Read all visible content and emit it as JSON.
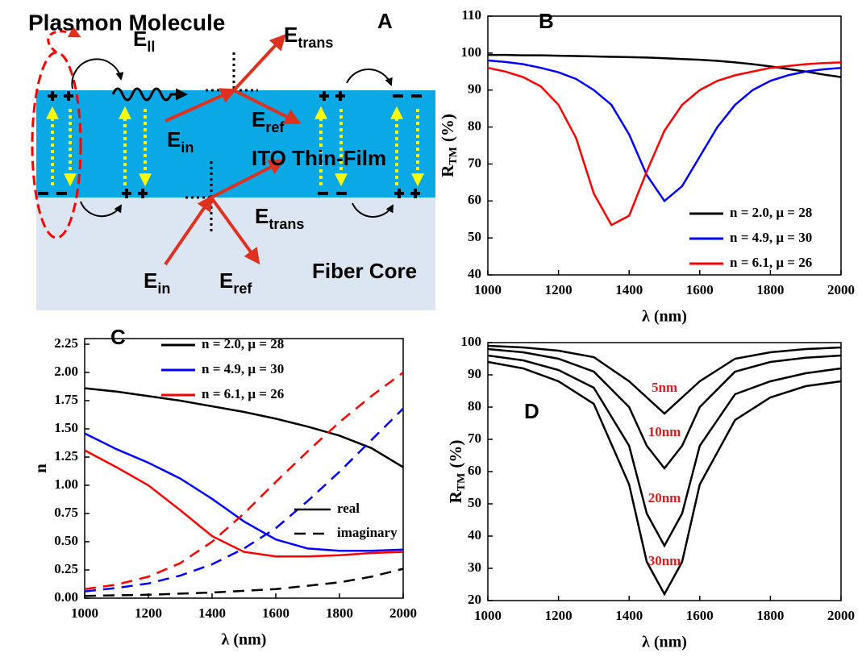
{
  "diagram": {
    "panel_label": "A",
    "title": "Plasmon Molecule",
    "film_label": "ITO Thin-Film",
    "core_label": "Fiber Core",
    "fields": [
      {
        "symbol": "E",
        "sub": "ll"
      },
      {
        "symbol": "E",
        "sub": "trans"
      },
      {
        "symbol": "E",
        "sub": "ref"
      },
      {
        "symbol": "E",
        "sub": "in"
      },
      {
        "symbol": "E",
        "sub": "trans"
      },
      {
        "symbol": "E",
        "sub": "in"
      },
      {
        "symbol": "E",
        "sub": "ref"
      }
    ]
  },
  "chart_data": [
    {
      "type": "line",
      "panel_label": "B",
      "xlabel": "λ (nm)",
      "ylabel": "R",
      "ylabel_sub": "TM",
      "ylabel_unit": "(%)",
      "x": [
        1000,
        1050,
        1100,
        1150,
        1200,
        1250,
        1300,
        1350,
        1400,
        1450,
        1500,
        1550,
        1600,
        1650,
        1700,
        1750,
        1800,
        1850,
        1900,
        1950,
        2000
      ],
      "xlim": [
        1000,
        2000
      ],
      "xticks": [
        1000,
        1200,
        1400,
        1600,
        1800,
        2000
      ],
      "ylim": [
        40,
        110
      ],
      "yticks": [
        40,
        50,
        60,
        70,
        80,
        90,
        100,
        110
      ],
      "legend": "lower right",
      "series": [
        {
          "name": "n = 2.0, μ = 28",
          "color": "#000000",
          "values": [
            99.5,
            99.5,
            99.4,
            99.4,
            99.3,
            99.2,
            99.1,
            99,
            98.9,
            98.8,
            98.6,
            98.4,
            98.2,
            97.9,
            97.5,
            97,
            96.4,
            95.7,
            95,
            94.2,
            93.5
          ]
        },
        {
          "name": "n = 4.9, μ = 30",
          "color": "#0000ff",
          "values": [
            98,
            97.6,
            97,
            96,
            94.8,
            93,
            90,
            86,
            78,
            67,
            60,
            64,
            72,
            80,
            86,
            90,
            92.5,
            94,
            95,
            95.6,
            96
          ]
        },
        {
          "name": "n = 6.1, μ = 26",
          "color": "#ff0000",
          "values": [
            96,
            95,
            93.5,
            91,
            86,
            77,
            62,
            53.5,
            56,
            68,
            79,
            86,
            90,
            92.5,
            94,
            95,
            96,
            96.5,
            97,
            97.3,
            97.5
          ]
        }
      ]
    },
    {
      "type": "line",
      "panel_label": "C",
      "xlabel": "λ (nm)",
      "ylabel": "n",
      "x": [
        1000,
        1100,
        1200,
        1300,
        1400,
        1500,
        1600,
        1700,
        1800,
        1900,
        2000
      ],
      "xlim": [
        1000,
        2000
      ],
      "xticks": [
        1000,
        1200,
        1400,
        1600,
        1800,
        2000
      ],
      "ylim": [
        0,
        2.3
      ],
      "yticks": [
        {
          "value": 0,
          "label": "0.00"
        },
        {
          "value": 0.25,
          "label": "0.25"
        },
        {
          "value": 0.5,
          "label": "0.50"
        },
        {
          "value": 0.75,
          "label": "0.75"
        },
        {
          "value": 1,
          "label": "1.00"
        },
        {
          "value": 1.25,
          "label": "1.25"
        },
        {
          "value": 1.5,
          "label": "1.50"
        },
        {
          "value": 1.75,
          "label": "1.75"
        },
        {
          "value": 2,
          "label": "2.00"
        },
        {
          "value": 2.25,
          "label": "2.25"
        }
      ],
      "legend": "upper left",
      "line_styles": [
        {
          "label": "real",
          "dashed": false
        },
        {
          "label": "imaginary",
          "dashed": true
        }
      ],
      "series": [
        {
          "name": "n = 2.0, μ = 28",
          "color": "#000000",
          "values": [
            1.86,
            1.83,
            1.79,
            1.75,
            1.7,
            1.65,
            1.59,
            1.52,
            1.44,
            1.33,
            1.16
          ],
          "imag_values": [
            0.02,
            0.025,
            0.03,
            0.04,
            0.05,
            0.065,
            0.08,
            0.11,
            0.14,
            0.19,
            0.26
          ]
        },
        {
          "name": "n = 4.9, μ = 30",
          "color": "#0000ff",
          "values": [
            1.46,
            1.32,
            1.2,
            1.06,
            0.88,
            0.68,
            0.52,
            0.44,
            0.42,
            0.42,
            0.43
          ],
          "imag_values": [
            0.06,
            0.09,
            0.13,
            0.2,
            0.3,
            0.44,
            0.62,
            0.86,
            1.12,
            1.4,
            1.68
          ]
        },
        {
          "name": "n = 6.1, μ = 26",
          "color": "#ff0000",
          "values": [
            1.31,
            1.16,
            1,
            0.78,
            0.55,
            0.41,
            0.37,
            0.37,
            0.38,
            0.4,
            0.41
          ],
          "imag_values": [
            0.08,
            0.12,
            0.19,
            0.31,
            0.5,
            0.75,
            1.03,
            1.3,
            1.56,
            1.79,
            2
          ]
        }
      ]
    },
    {
      "type": "line",
      "panel_label": "D",
      "xlabel": "λ (nm)",
      "ylabel": "R",
      "ylabel_sub": "TM",
      "ylabel_unit": "(%)",
      "x": [
        1000,
        1100,
        1200,
        1300,
        1400,
        1450,
        1500,
        1550,
        1600,
        1700,
        1800,
        1900,
        2000
      ],
      "xlim": [
        1000,
        2000
      ],
      "xticks": [
        1000,
        1200,
        1400,
        1600,
        1800,
        2000
      ],
      "ylim": [
        20,
        100
      ],
      "yticks": [
        20,
        30,
        40,
        50,
        60,
        70,
        80,
        90,
        100
      ],
      "label_color": "#e31a1c",
      "series": [
        {
          "name": "5nm",
          "color": "#000000",
          "values": [
            99,
            98.5,
            97.5,
            95.5,
            88,
            83,
            78,
            83,
            88,
            95,
            97,
            98,
            98.5
          ]
        },
        {
          "name": "10nm",
          "color": "#000000",
          "values": [
            98,
            97,
            95,
            91,
            80,
            68,
            61,
            68,
            80,
            91,
            94,
            95.3,
            96
          ]
        },
        {
          "name": "20nm",
          "color": "#000000",
          "values": [
            96,
            94.5,
            91.5,
            86,
            68,
            47,
            37,
            47,
            68,
            84,
            88,
            90.5,
            92
          ]
        },
        {
          "name": "30nm",
          "color": "#000000",
          "values": [
            94,
            92,
            88,
            81,
            56,
            32,
            22,
            32,
            56,
            76,
            83,
            86.5,
            88
          ]
        }
      ]
    }
  ]
}
